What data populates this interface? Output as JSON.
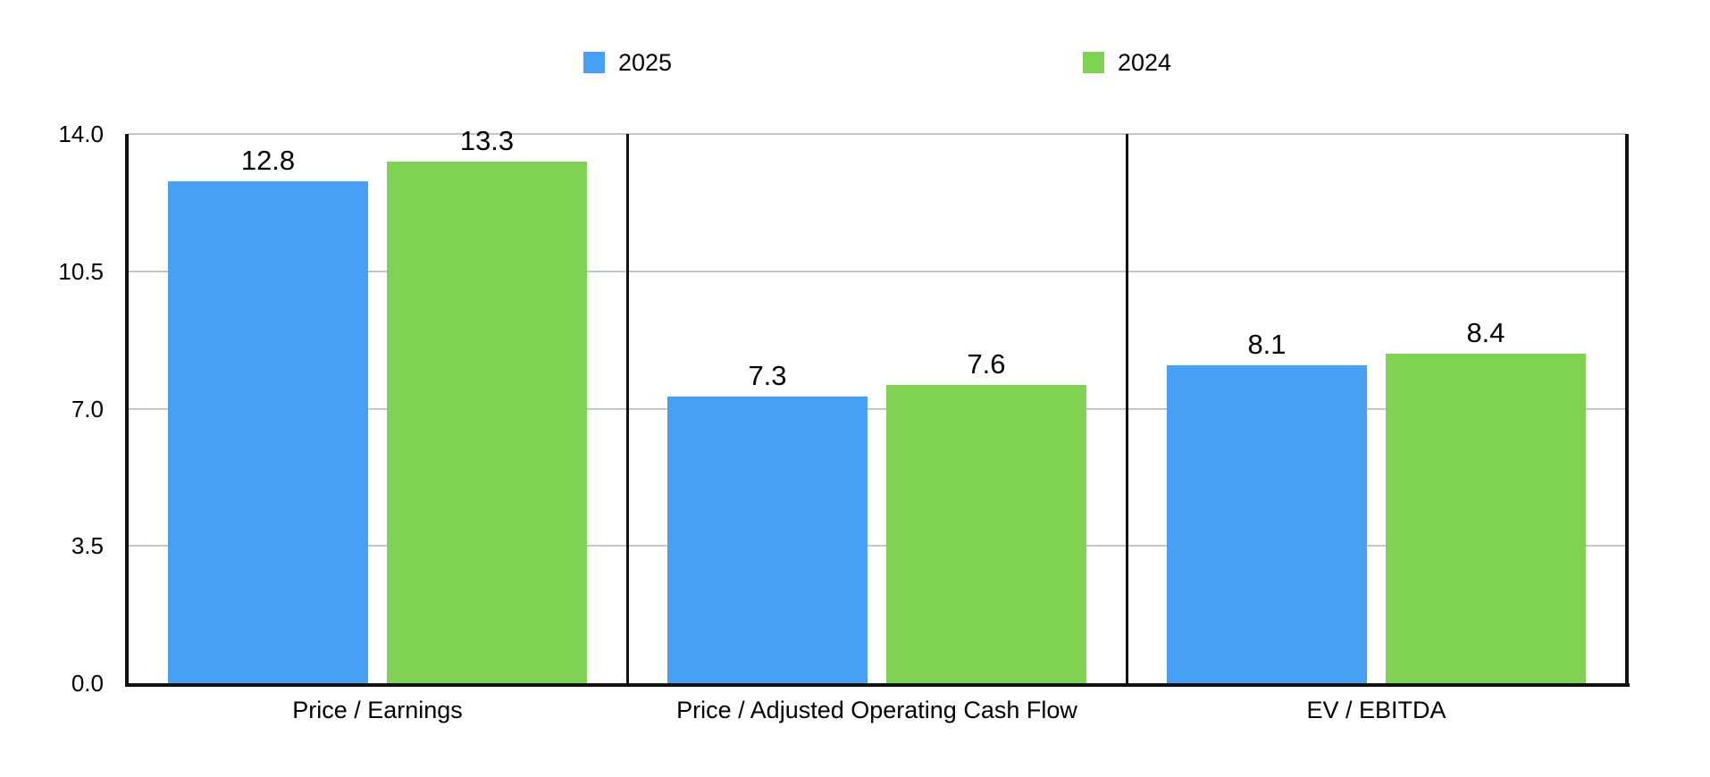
{
  "chart_data": {
    "type": "bar",
    "title": "",
    "xlabel": "",
    "ylabel": "",
    "categories": [
      "Price / Earnings",
      "Price / Adjusted Operating Cash Flow",
      "EV / EBITDA"
    ],
    "series": [
      {
        "name": "2025",
        "color": "#47A0F4",
        "values": [
          12.8,
          7.3,
          8.1
        ]
      },
      {
        "name": "2024",
        "color": "#80D253",
        "values": [
          13.3,
          7.6,
          8.4
        ]
      }
    ],
    "value_labels": [
      "12.8",
      "13.3",
      "7.3",
      "7.6",
      "8.1",
      "8.4"
    ],
    "ylim": [
      0,
      14
    ],
    "yticks": [
      0.0,
      3.5,
      7.0,
      10.5,
      14.0
    ],
    "ytick_labels": [
      "0.0",
      "3.5",
      "7.0",
      "10.5",
      "14.0"
    ],
    "grid": true,
    "legend_position": "top",
    "panel_dividers": true
  },
  "colors": {
    "background": "#ffffff",
    "axis": "#111111",
    "gridline": "#c6c6c6",
    "text": "#000000"
  }
}
